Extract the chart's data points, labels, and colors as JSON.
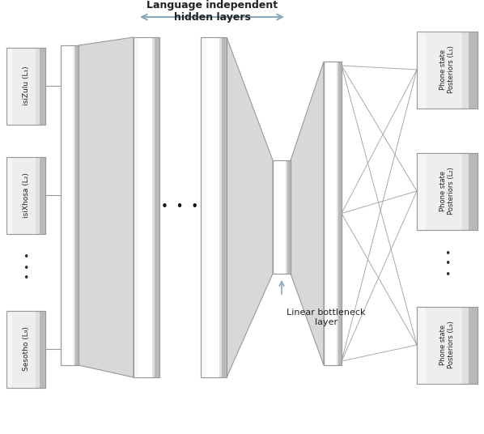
{
  "bg_color": "#ffffff",
  "edge_color": "#999999",
  "fill_light": "#e8e8e8",
  "fill_medium": "#d0d0d0",
  "fill_white": "#ffffff",
  "arrow_color": "#8aaabb",
  "input_labels": [
    "isiZulu (L₁)",
    "isiXhosa (L₂)",
    "Sesotho (L₉)"
  ],
  "output_labels": [
    "Phone state\nPosteriors (L₁)",
    "Phone state\nPosteriors (L₂)",
    "Phone state\nPosteriors (L₉)"
  ],
  "arrow_label": "Language independent\nhidden layers",
  "bottleneck_label": "Linear bottleneck\nlayer",
  "dots_hidden": "•  •  •",
  "dots_left": "•\n•\n•",
  "dots_right": "•\n•\n•"
}
